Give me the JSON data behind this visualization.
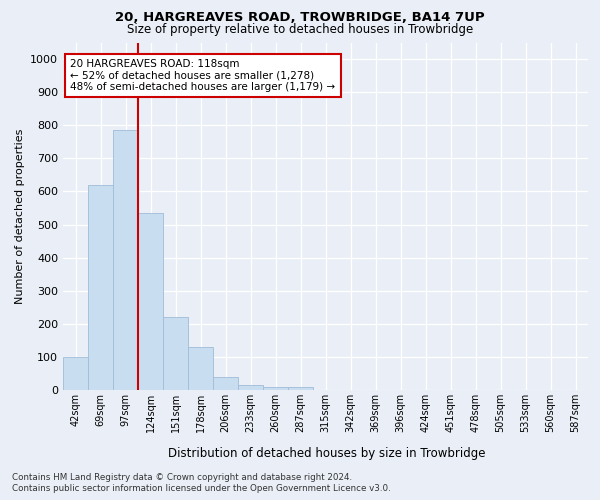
{
  "title1": "20, HARGREAVES ROAD, TROWBRIDGE, BA14 7UP",
  "title2": "Size of property relative to detached houses in Trowbridge",
  "xlabel": "Distribution of detached houses by size in Trowbridge",
  "ylabel": "Number of detached properties",
  "categories": [
    "42sqm",
    "69sqm",
    "97sqm",
    "124sqm",
    "151sqm",
    "178sqm",
    "206sqm",
    "233sqm",
    "260sqm",
    "287sqm",
    "315sqm",
    "342sqm",
    "369sqm",
    "396sqm",
    "424sqm",
    "451sqm",
    "478sqm",
    "505sqm",
    "533sqm",
    "560sqm",
    "587sqm"
  ],
  "values": [
    100,
    620,
    785,
    535,
    220,
    130,
    40,
    15,
    10,
    10,
    0,
    0,
    0,
    0,
    0,
    0,
    0,
    0,
    0,
    0,
    0
  ],
  "bar_color": "#c9ddf0",
  "bar_edge_color": "#a0bcd8",
  "redline_x": 3.0,
  "annotation_text": "20 HARGREAVES ROAD: 118sqm\n← 52% of detached houses are smaller (1,278)\n48% of semi-detached houses are larger (1,179) →",
  "annotation_box_color": "#ffffff",
  "annotation_box_edge_color": "#cc0000",
  "redline_color": "#cc0000",
  "ylim": [
    0,
    1050
  ],
  "yticks": [
    0,
    100,
    200,
    300,
    400,
    500,
    600,
    700,
    800,
    900,
    1000
  ],
  "footer1": "Contains HM Land Registry data © Crown copyright and database right 2024.",
  "footer2": "Contains public sector information licensed under the Open Government Licence v3.0.",
  "bg_color": "#eaeff7",
  "plot_bg_color": "#eaeff7",
  "grid_color": "#ffffff"
}
